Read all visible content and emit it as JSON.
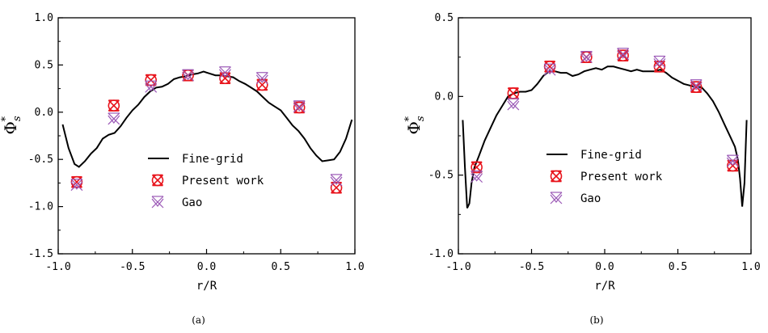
{
  "chart_data": [
    {
      "type": "line",
      "panel_label": "(a)",
      "xlabel": "r/R",
      "ylabel_main": "Φ",
      "ylabel_sub": "s",
      "ylabel_sup": "*",
      "xlim": [
        -1.0,
        1.0
      ],
      "ylim": [
        -1.5,
        1.0
      ],
      "xticks": [
        -1.0,
        -0.5,
        0.0,
        0.5,
        1.0
      ],
      "xtick_labels": [
        "-1.0",
        "-0.5",
        "0.0",
        "0.5",
        "1.0"
      ],
      "yticks": [
        -1.5,
        -1.0,
        -0.5,
        0.0,
        0.5,
        1.0
      ],
      "ytick_labels": [
        "-1.5",
        "-1.0",
        "-0.5",
        "0.0",
        "0.5",
        "1.0"
      ],
      "grid": false,
      "legend_position": "lower-center",
      "series": [
        {
          "name": "Fine-grid",
          "kind": "line",
          "color": "#000000",
          "x": [
            -0.97,
            -0.93,
            -0.89,
            -0.86,
            -0.82,
            -0.78,
            -0.74,
            -0.7,
            -0.66,
            -0.62,
            -0.58,
            -0.54,
            -0.5,
            -0.46,
            -0.42,
            -0.38,
            -0.34,
            -0.3,
            -0.26,
            -0.22,
            -0.18,
            -0.14,
            -0.1,
            -0.06,
            -0.02,
            0.02,
            0.06,
            0.1,
            0.14,
            0.18,
            0.22,
            0.26,
            0.3,
            0.34,
            0.38,
            0.42,
            0.46,
            0.5,
            0.54,
            0.58,
            0.62,
            0.66,
            0.7,
            0.74,
            0.78,
            0.82,
            0.86,
            0.9,
            0.94,
            0.98
          ],
          "y": [
            -0.13,
            -0.38,
            -0.55,
            -0.58,
            -0.52,
            -0.44,
            -0.38,
            -0.28,
            -0.24,
            -0.22,
            -0.15,
            -0.06,
            0.02,
            0.08,
            0.16,
            0.22,
            0.26,
            0.27,
            0.3,
            0.35,
            0.37,
            0.38,
            0.4,
            0.41,
            0.43,
            0.41,
            0.39,
            0.39,
            0.38,
            0.37,
            0.33,
            0.3,
            0.26,
            0.22,
            0.16,
            0.1,
            0.06,
            0.02,
            -0.06,
            -0.14,
            -0.2,
            -0.28,
            -0.38,
            -0.46,
            -0.52,
            -0.51,
            -0.5,
            -0.42,
            -0.28,
            -0.08
          ]
        },
        {
          "name": "Present work",
          "kind": "marker",
          "color": "#e8141c",
          "x": [
            -0.875,
            -0.625,
            -0.375,
            -0.125,
            0.125,
            0.375,
            0.625,
            0.875
          ],
          "y": [
            -0.74,
            0.07,
            0.34,
            0.39,
            0.36,
            0.29,
            0.05,
            -0.8
          ]
        },
        {
          "name": "Gao",
          "kind": "marker",
          "color": "#9b59b6",
          "x": [
            -0.875,
            -0.625,
            -0.375,
            -0.125,
            0.125,
            0.375,
            0.625,
            0.875
          ],
          "y": [
            -0.77,
            -0.07,
            0.27,
            0.39,
            0.42,
            0.36,
            0.06,
            -0.72
          ]
        }
      ]
    },
    {
      "type": "line",
      "panel_label": "(b)",
      "xlabel": "r/R",
      "ylabel_main": "Φ",
      "ylabel_sub": "s",
      "ylabel_sup": "*",
      "xlim": [
        -1.0,
        1.0
      ],
      "ylim": [
        -1.0,
        0.5
      ],
      "xticks": [
        -1.0,
        -0.5,
        0.0,
        0.5,
        1.0
      ],
      "xtick_labels": [
        "-1.0",
        "-0.5",
        "0.0",
        "0.5",
        "1.0"
      ],
      "yticks": [
        -1.0,
        -0.5,
        0.0,
        0.5
      ],
      "ytick_labels": [
        "-1.0",
        "-0.5",
        "0.0",
        "0.5"
      ],
      "grid": false,
      "legend_position": "lower-center",
      "series": [
        {
          "name": "Fine-grid",
          "kind": "line",
          "color": "#000000",
          "x": [
            -0.97,
            -0.955,
            -0.94,
            -0.925,
            -0.91,
            -0.89,
            -0.86,
            -0.82,
            -0.78,
            -0.74,
            -0.7,
            -0.66,
            -0.62,
            -0.58,
            -0.54,
            -0.5,
            -0.46,
            -0.42,
            -0.38,
            -0.34,
            -0.3,
            -0.26,
            -0.22,
            -0.18,
            -0.14,
            -0.1,
            -0.06,
            -0.02,
            0.02,
            0.06,
            0.1,
            0.14,
            0.18,
            0.22,
            0.26,
            0.3,
            0.34,
            0.38,
            0.42,
            0.46,
            0.5,
            0.54,
            0.58,
            0.62,
            0.66,
            0.7,
            0.74,
            0.78,
            0.82,
            0.86,
            0.89,
            0.91,
            0.925,
            0.94,
            0.955,
            0.97
          ],
          "y": [
            -0.15,
            -0.45,
            -0.71,
            -0.68,
            -0.55,
            -0.45,
            -0.38,
            -0.28,
            -0.2,
            -0.12,
            -0.06,
            0.0,
            0.02,
            0.03,
            0.03,
            0.04,
            0.08,
            0.13,
            0.16,
            0.16,
            0.15,
            0.15,
            0.13,
            0.14,
            0.16,
            0.17,
            0.18,
            0.17,
            0.19,
            0.19,
            0.18,
            0.17,
            0.16,
            0.17,
            0.16,
            0.16,
            0.16,
            0.17,
            0.15,
            0.12,
            0.1,
            0.08,
            0.07,
            0.06,
            0.06,
            0.02,
            -0.03,
            -0.1,
            -0.18,
            -0.26,
            -0.32,
            -0.4,
            -0.52,
            -0.7,
            -0.55,
            -0.15
          ]
        },
        {
          "name": "Present work",
          "kind": "marker",
          "color": "#e8141c",
          "x": [
            -0.875,
            -0.625,
            -0.375,
            -0.125,
            0.125,
            0.375,
            0.625,
            0.875
          ],
          "y": [
            -0.45,
            0.02,
            0.19,
            0.25,
            0.26,
            0.19,
            0.06,
            -0.44
          ]
        },
        {
          "name": "Gao",
          "kind": "marker",
          "color": "#9b59b6",
          "x": [
            -0.875,
            -0.625,
            -0.375,
            -0.125,
            0.125,
            0.375,
            0.625,
            0.875
          ],
          "y": [
            -0.51,
            -0.05,
            0.17,
            0.25,
            0.27,
            0.22,
            0.07,
            -0.41
          ]
        }
      ]
    }
  ]
}
